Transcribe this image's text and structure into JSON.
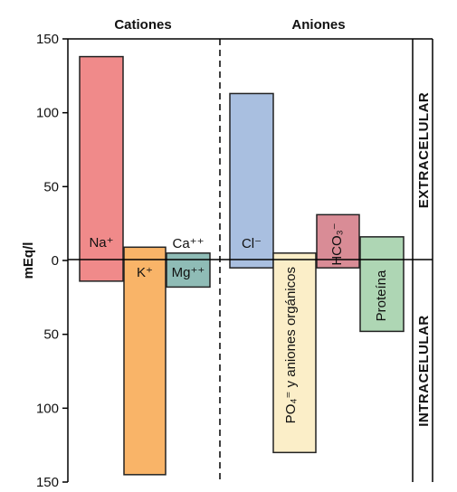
{
  "chart_data": {
    "type": "bar",
    "ylabel": "mEq/l",
    "yticks": [
      "150",
      "100",
      "50",
      "0",
      "50",
      "100",
      "150"
    ],
    "ylim": [
      -150,
      150
    ],
    "groups": [
      "Cationes",
      "Aniones"
    ],
    "regions": {
      "upper": "EXTRACELULAR",
      "lower": "INTRACELULAR"
    },
    "bars": [
      {
        "label": "Na⁺",
        "group": "Cationes",
        "top": 138,
        "bottom": -14,
        "color": "#f08a8a"
      },
      {
        "label": "K⁺",
        "group": "Cationes",
        "top": 9,
        "bottom": -145,
        "color": "#f9b468"
      },
      {
        "label": "Ca⁺⁺",
        "label2": "Mg⁺⁺",
        "group": "Cationes",
        "top": 5,
        "bottom": -18,
        "color": "#8fbcb6"
      },
      {
        "label": "Cl⁻",
        "group": "Aniones",
        "top": 113,
        "bottom": -5,
        "color": "#a9bfe0"
      },
      {
        "label": "PO₄⁼ y aniones orgánicos",
        "group": "Aniones",
        "top": 5,
        "bottom": -130,
        "color": "#fbeec8"
      },
      {
        "label": "HCO₃⁻",
        "group": "Aniones",
        "top": 31,
        "bottom": -5,
        "color": "#d98c96"
      },
      {
        "label": "Proteína",
        "group": "Aniones",
        "top": 16,
        "bottom": -48,
        "color": "#aed6b4"
      }
    ],
    "grid": false
  }
}
